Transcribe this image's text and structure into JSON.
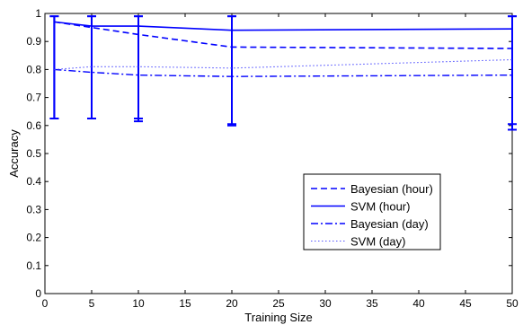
{
  "chart_data": {
    "type": "line",
    "title": "",
    "xlabel": "Training Size",
    "ylabel": "Accuracy",
    "xlim": [
      0,
      50
    ],
    "ylim": [
      0,
      1
    ],
    "xticks": [
      "0",
      "5",
      "10",
      "15",
      "20",
      "25",
      "30",
      "35",
      "40",
      "45",
      "50"
    ],
    "yticks": [
      "0",
      "0.1",
      "0.2",
      "0.3",
      "0.4",
      "0.5",
      "0.6",
      "0.7",
      "0.8",
      "0.9",
      "1"
    ],
    "grid": false,
    "legend_position": "center-right",
    "x": [
      1,
      5,
      10,
      20,
      50
    ],
    "series": [
      {
        "name": "Bayesian (hour)",
        "style": "dashed",
        "color": "#0000ff",
        "values": [
          0.97,
          0.95,
          0.925,
          0.88,
          0.875
        ],
        "error_low": [
          0.625,
          0.625,
          0.615,
          0.6,
          0.585
        ],
        "error_high": [
          0.99,
          0.99,
          0.99,
          0.99,
          0.99
        ]
      },
      {
        "name": "SVM (hour)",
        "style": "solid",
        "color": "#0000ff",
        "values": [
          0.97,
          0.955,
          0.955,
          0.94,
          0.945
        ],
        "error_low": [
          0.625,
          0.625,
          0.625,
          0.605,
          0.605
        ],
        "error_high": [
          0.99,
          0.99,
          0.99,
          0.99,
          0.99
        ]
      },
      {
        "name": "Bayesian (day)",
        "style": "dashdot",
        "color": "#0000ff",
        "values": [
          0.8,
          0.79,
          0.78,
          0.775,
          0.78
        ]
      },
      {
        "name": "SVM (day)",
        "style": "dotted",
        "color": "#5555ff",
        "values": [
          0.8,
          0.81,
          0.81,
          0.805,
          0.835
        ]
      }
    ]
  }
}
